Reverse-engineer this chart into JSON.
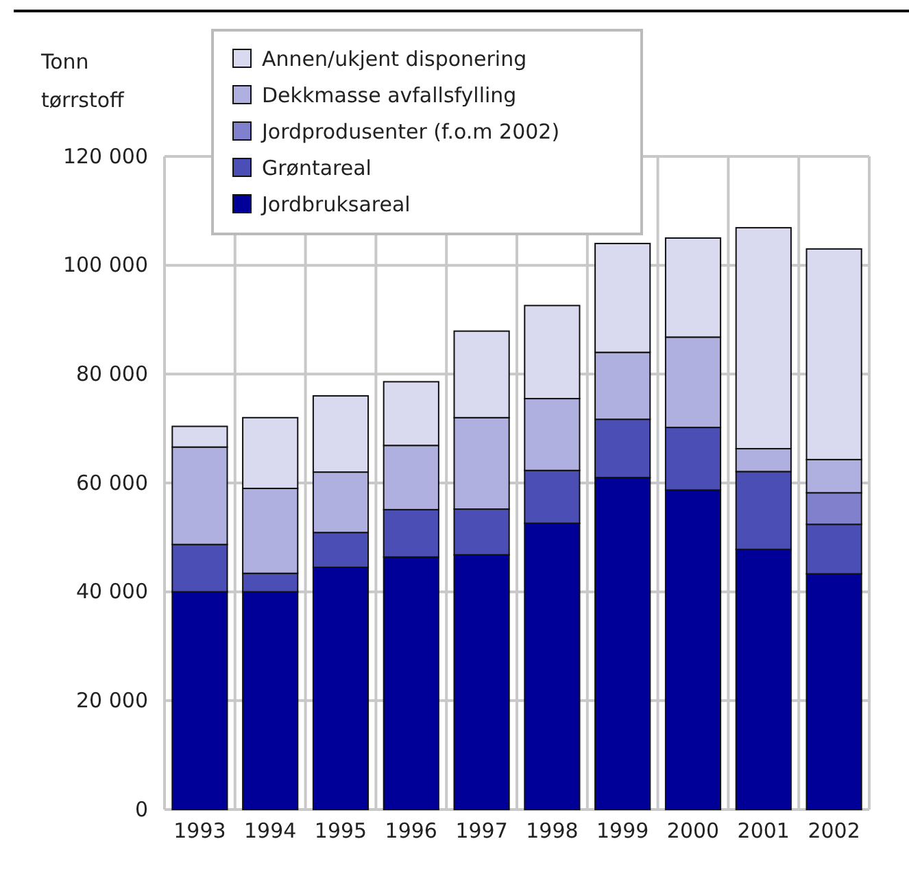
{
  "chart_data": {
    "type": "bar",
    "stacked": true,
    "ylabel": "Tonn tørrstoff",
    "categories": [
      "1993",
      "1994",
      "1995",
      "1996",
      "1997",
      "1998",
      "1999",
      "2000",
      "2001",
      "2002"
    ],
    "series": [
      {
        "name": "Jordbruksareal",
        "color": "#000099",
        "values": [
          40000,
          40000,
          44500,
          46400,
          46800,
          52600,
          61000,
          58700,
          47800,
          43300
        ]
      },
      {
        "name": "Grøntareal",
        "color": "#4b4fb5",
        "values": [
          8700,
          3400,
          6400,
          8700,
          8400,
          9700,
          10700,
          11500,
          14300,
          9100
        ]
      },
      {
        "name": "Jordprodusenter (f.o.m 2002)",
        "color": "#8080cc",
        "values": [
          null,
          null,
          null,
          null,
          null,
          null,
          null,
          null,
          null,
          5800
        ]
      },
      {
        "name": "Dekkmasse avfallsfylling",
        "color": "#b0b0e0",
        "values": [
          17900,
          15600,
          11100,
          11800,
          16800,
          13200,
          12300,
          16600,
          4200,
          6100
        ]
      },
      {
        "name": "Annen/ukjent disponering",
        "color": "#d9d9f0",
        "values": [
          3800,
          13000,
          14000,
          11700,
          15900,
          17100,
          20000,
          18200,
          40600,
          38700
        ]
      }
    ],
    "ylim": [
      0,
      120000
    ],
    "yticks": [
      {
        "value": 0,
        "label": "0"
      },
      {
        "value": 20000,
        "label": "20 000"
      },
      {
        "value": 40000,
        "label": "40 000"
      },
      {
        "value": 60000,
        "label": "60 000"
      },
      {
        "value": 80000,
        "label": "80 000"
      },
      {
        "value": 100000,
        "label": "100 000"
      },
      {
        "value": 120000,
        "label": "120 000"
      }
    ],
    "grid": true,
    "legend": "top left"
  }
}
